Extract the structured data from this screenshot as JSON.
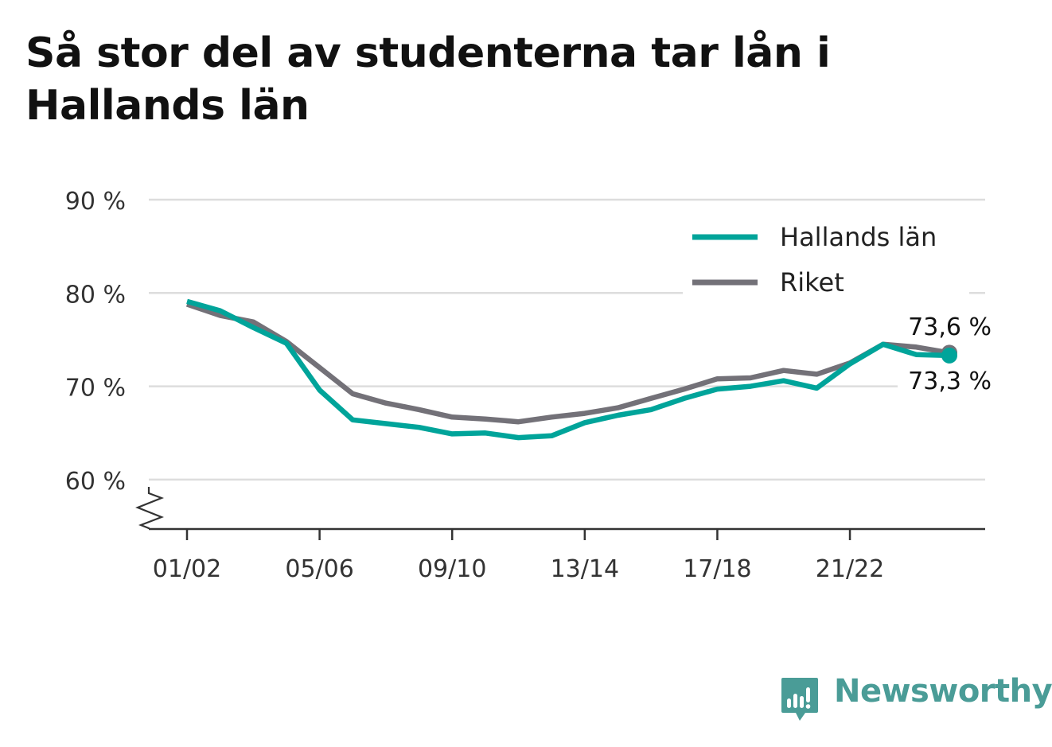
{
  "chart_data": {
    "type": "line",
    "title": "Så stor del av studenterna tar lån i Hallands län",
    "x": [
      "01/02",
      "02/03",
      "03/04",
      "04/05",
      "05/06",
      "06/07",
      "07/08",
      "08/09",
      "09/10",
      "10/11",
      "11/12",
      "12/13",
      "13/14",
      "14/15",
      "15/16",
      "16/17",
      "17/18",
      "18/19",
      "19/20",
      "20/21",
      "21/22",
      "22/23",
      "23/24",
      "24/25"
    ],
    "x_tick_labels": [
      "01/02",
      "05/06",
      "09/10",
      "13/14",
      "17/18",
      "21/22"
    ],
    "y_tick_labels": [
      "60 %",
      "70 %",
      "80 %",
      "90 %"
    ],
    "y_ticks": [
      60,
      70,
      80,
      90
    ],
    "ylim": [
      55,
      90
    ],
    "axis_break": true,
    "grid": true,
    "legend_position": "top-right",
    "series": [
      {
        "name": "Hallands län",
        "color": "#00a49a",
        "values": [
          79.1,
          78.1,
          76.3,
          74.6,
          69.6,
          66.4,
          66.0,
          65.6,
          64.9,
          65.0,
          64.5,
          64.7,
          66.1,
          66.9,
          67.5,
          68.7,
          69.7,
          70.0,
          70.6,
          69.8,
          72.4,
          74.5,
          73.4,
          73.3
        ],
        "end_label": "73,3 %"
      },
      {
        "name": "Riket",
        "color": "#737178",
        "values": [
          78.8,
          77.6,
          76.9,
          74.8,
          72.0,
          69.2,
          68.2,
          67.5,
          66.7,
          66.5,
          66.2,
          66.7,
          67.1,
          67.7,
          68.7,
          69.7,
          70.8,
          70.9,
          71.7,
          71.3,
          72.5,
          74.5,
          74.2,
          73.6
        ],
        "end_label": "73,6 %"
      }
    ]
  },
  "logo": {
    "text": "Newsworthy",
    "color": "#4a9c97",
    "icon": "newsworthy-logo-icon"
  },
  "colors": {
    "grid": "#dddddd",
    "axis": "#333333",
    "text": "#333333",
    "title": "#111111"
  }
}
